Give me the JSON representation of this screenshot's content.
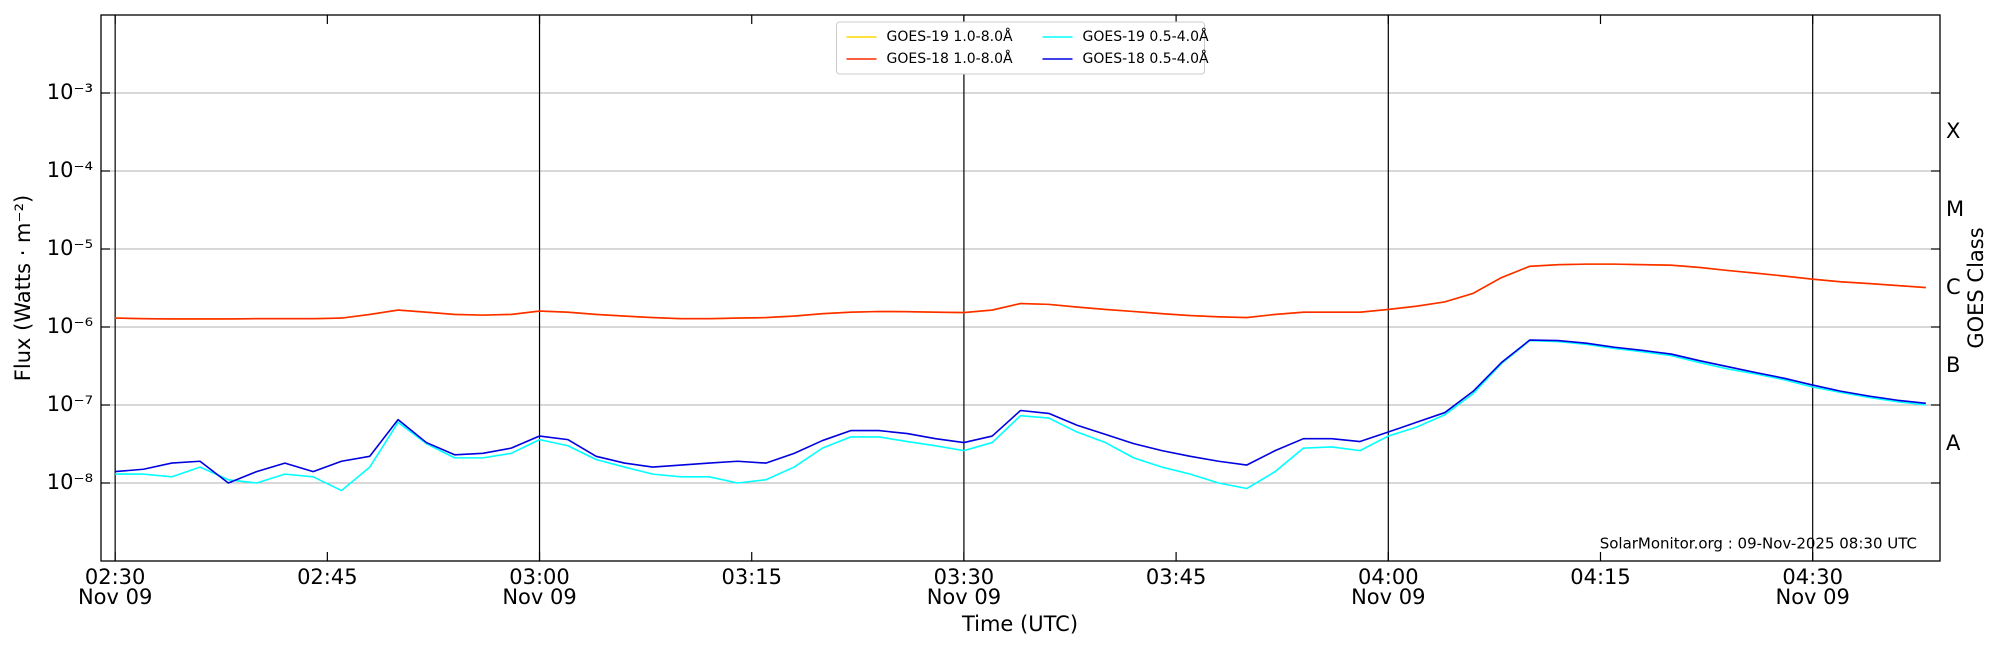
{
  "chart_data": {
    "type": "line",
    "x_label": "Time (UTC)",
    "y_label": "Flux (Watts · m⁻²)",
    "y2_label": "GOES Class",
    "annotation": "SolarMonitor.org : 09-Nov-2025 08:30 UTC",
    "log_y": true,
    "grid": true,
    "legend": "upper center",
    "xlim": [
      "02:29",
      "04:39"
    ],
    "ylim": [
      1e-09,
      0.01
    ],
    "xticks": [
      {
        "value": "02:30",
        "label": "02:30",
        "date": "Nov 09"
      },
      "02:45",
      {
        "value": "03:00",
        "label": "03:00",
        "date": "Nov 09"
      },
      "03:15",
      {
        "value": "03:30",
        "label": "03:30",
        "date": "Nov 09"
      },
      "03:45",
      {
        "value": "04:00",
        "label": "04:00",
        "date": "Nov 09"
      },
      "04:15",
      {
        "value": "04:30",
        "label": "04:30",
        "date": "Nov 09"
      }
    ],
    "vlines": [
      "02:30",
      "03:00",
      "03:30",
      "04:00",
      "04:30"
    ],
    "yticks": [
      {
        "value": 1e-08,
        "label": "10⁻⁸"
      },
      {
        "value": 1e-07,
        "label": "10⁻⁷"
      },
      {
        "value": 1e-06,
        "label": "10⁻⁶"
      },
      {
        "value": 1e-05,
        "label": "10⁻⁵"
      },
      {
        "value": 0.0001,
        "label": "10⁻⁴"
      },
      {
        "value": 0.001,
        "label": "10⁻³"
      }
    ],
    "classes": [
      {
        "value": 1e-08,
        "label": "A"
      },
      {
        "value": 1e-07,
        "label": "B"
      },
      {
        "value": 1e-06,
        "label": "C"
      },
      {
        "value": 1e-05,
        "label": "M"
      },
      {
        "value": 0.0001,
        "label": "X"
      }
    ],
    "x": [
      "02:30",
      "02:32",
      "02:34",
      "02:36",
      "02:38",
      "02:40",
      "02:42",
      "02:44",
      "02:46",
      "02:48",
      "02:50",
      "02:52",
      "02:54",
      "02:56",
      "02:58",
      "03:00",
      "03:02",
      "03:04",
      "03:06",
      "03:08",
      "03:10",
      "03:12",
      "03:14",
      "03:16",
      "03:18",
      "03:20",
      "03:22",
      "03:24",
      "03:26",
      "03:28",
      "03:30",
      "03:32",
      "03:34",
      "03:36",
      "03:38",
      "03:40",
      "03:42",
      "03:44",
      "03:46",
      "03:48",
      "03:50",
      "03:52",
      "03:54",
      "03:56",
      "03:58",
      "04:00",
      "04:02",
      "04:04",
      "04:06",
      "04:08",
      "04:10",
      "04:12",
      "04:14",
      "04:16",
      "04:18",
      "04:20",
      "04:22",
      "04:24",
      "04:26",
      "04:28",
      "04:30",
      "04:32",
      "04:34",
      "04:36",
      "04:38"
    ],
    "series": [
      {
        "name": "GOES-19 1.0-8.0Å",
        "color": "#ffd700",
        "values": [
          1.3e-06,
          1.28e-06,
          1.27e-06,
          1.27e-06,
          1.27e-06,
          1.28e-06,
          1.28e-06,
          1.28e-06,
          1.3e-06,
          1.45e-06,
          1.65e-06,
          1.55e-06,
          1.45e-06,
          1.42e-06,
          1.45e-06,
          1.6e-06,
          1.55e-06,
          1.45e-06,
          1.38e-06,
          1.32e-06,
          1.28e-06,
          1.28e-06,
          1.3e-06,
          1.32e-06,
          1.38e-06,
          1.48e-06,
          1.55e-06,
          1.58e-06,
          1.57e-06,
          1.55e-06,
          1.53e-06,
          1.65e-06,
          2e-06,
          1.95e-06,
          1.8e-06,
          1.68e-06,
          1.58e-06,
          1.48e-06,
          1.4e-06,
          1.35e-06,
          1.32e-06,
          1.45e-06,
          1.55e-06,
          1.55e-06,
          1.55e-06,
          1.68e-06,
          1.85e-06,
          2.1e-06,
          2.7e-06,
          4.3e-06,
          6e-06,
          6.3e-06,
          6.4e-06,
          6.4e-06,
          6.3e-06,
          6.2e-06,
          5.8e-06,
          5.3e-06,
          4.9e-06,
          4.5e-06,
          4.1e-06,
          3.8e-06,
          3.6e-06,
          3.4e-06,
          3.2e-06
        ]
      },
      {
        "name": "GOES-18 1.0-8.0Å",
        "color": "#ff2a00",
        "values": [
          1.3e-06,
          1.28e-06,
          1.27e-06,
          1.27e-06,
          1.27e-06,
          1.28e-06,
          1.28e-06,
          1.28e-06,
          1.3e-06,
          1.45e-06,
          1.65e-06,
          1.55e-06,
          1.45e-06,
          1.42e-06,
          1.45e-06,
          1.6e-06,
          1.55e-06,
          1.45e-06,
          1.38e-06,
          1.32e-06,
          1.28e-06,
          1.28e-06,
          1.3e-06,
          1.32e-06,
          1.38e-06,
          1.48e-06,
          1.55e-06,
          1.58e-06,
          1.57e-06,
          1.55e-06,
          1.53e-06,
          1.65e-06,
          2e-06,
          1.95e-06,
          1.8e-06,
          1.68e-06,
          1.58e-06,
          1.48e-06,
          1.4e-06,
          1.35e-06,
          1.32e-06,
          1.45e-06,
          1.55e-06,
          1.55e-06,
          1.55e-06,
          1.68e-06,
          1.85e-06,
          2.1e-06,
          2.7e-06,
          4.3e-06,
          6e-06,
          6.3e-06,
          6.4e-06,
          6.4e-06,
          6.3e-06,
          6.2e-06,
          5.8e-06,
          5.3e-06,
          4.9e-06,
          4.5e-06,
          4.1e-06,
          3.8e-06,
          3.6e-06,
          3.4e-06,
          3.2e-06
        ]
      },
      {
        "name": "GOES-19 0.5-4.0Å",
        "color": "#00ffff",
        "values": [
          1.3e-08,
          1.3e-08,
          1.2e-08,
          1.6e-08,
          1.1e-08,
          1e-08,
          1.3e-08,
          1.2e-08,
          8e-09,
          1.6e-08,
          6e-08,
          3.2e-08,
          2.1e-08,
          2.1e-08,
          2.4e-08,
          3.6e-08,
          3e-08,
          2e-08,
          1.6e-08,
          1.3e-08,
          1.2e-08,
          1.2e-08,
          1e-08,
          1.1e-08,
          1.6e-08,
          2.8e-08,
          3.9e-08,
          3.9e-08,
          3.4e-08,
          3e-08,
          2.6e-08,
          3.3e-08,
          7.3e-08,
          6.8e-08,
          4.5e-08,
          3.3e-08,
          2.1e-08,
          1.6e-08,
          1.3e-08,
          1e-08,
          8.5e-09,
          1.4e-08,
          2.8e-08,
          2.9e-08,
          2.6e-08,
          4e-08,
          5.2e-08,
          7.5e-08,
          1.4e-07,
          3.4e-07,
          6.7e-07,
          6.5e-07,
          6e-07,
          5.3e-07,
          4.8e-07,
          4.3e-07,
          3.5e-07,
          2.9e-07,
          2.5e-07,
          2.1e-07,
          1.7e-07,
          1.45e-07,
          1.25e-07,
          1.1e-07,
          1e-07
        ]
      },
      {
        "name": "GOES-18 0.5-4.0Å",
        "color": "#0000e0",
        "values": [
          1.4e-08,
          1.5e-08,
          1.8e-08,
          1.9e-08,
          1e-08,
          1.4e-08,
          1.8e-08,
          1.4e-08,
          1.9e-08,
          2.2e-08,
          6.5e-08,
          3.3e-08,
          2.3e-08,
          2.4e-08,
          2.8e-08,
          4e-08,
          3.6e-08,
          2.2e-08,
          1.8e-08,
          1.6e-08,
          1.7e-08,
          1.8e-08,
          1.9e-08,
          1.8e-08,
          2.4e-08,
          3.5e-08,
          4.7e-08,
          4.7e-08,
          4.3e-08,
          3.7e-08,
          3.3e-08,
          4e-08,
          8.5e-08,
          7.8e-08,
          5.5e-08,
          4.2e-08,
          3.2e-08,
          2.6e-08,
          2.2e-08,
          1.9e-08,
          1.7e-08,
          2.6e-08,
          3.7e-08,
          3.7e-08,
          3.4e-08,
          4.5e-08,
          6e-08,
          8e-08,
          1.5e-07,
          3.5e-07,
          6.8e-07,
          6.7e-07,
          6.2e-07,
          5.5e-07,
          5e-07,
          4.5e-07,
          3.7e-07,
          3.1e-07,
          2.6e-07,
          2.2e-07,
          1.8e-07,
          1.5e-07,
          1.3e-07,
          1.15e-07,
          1.05e-07
        ]
      }
    ]
  }
}
